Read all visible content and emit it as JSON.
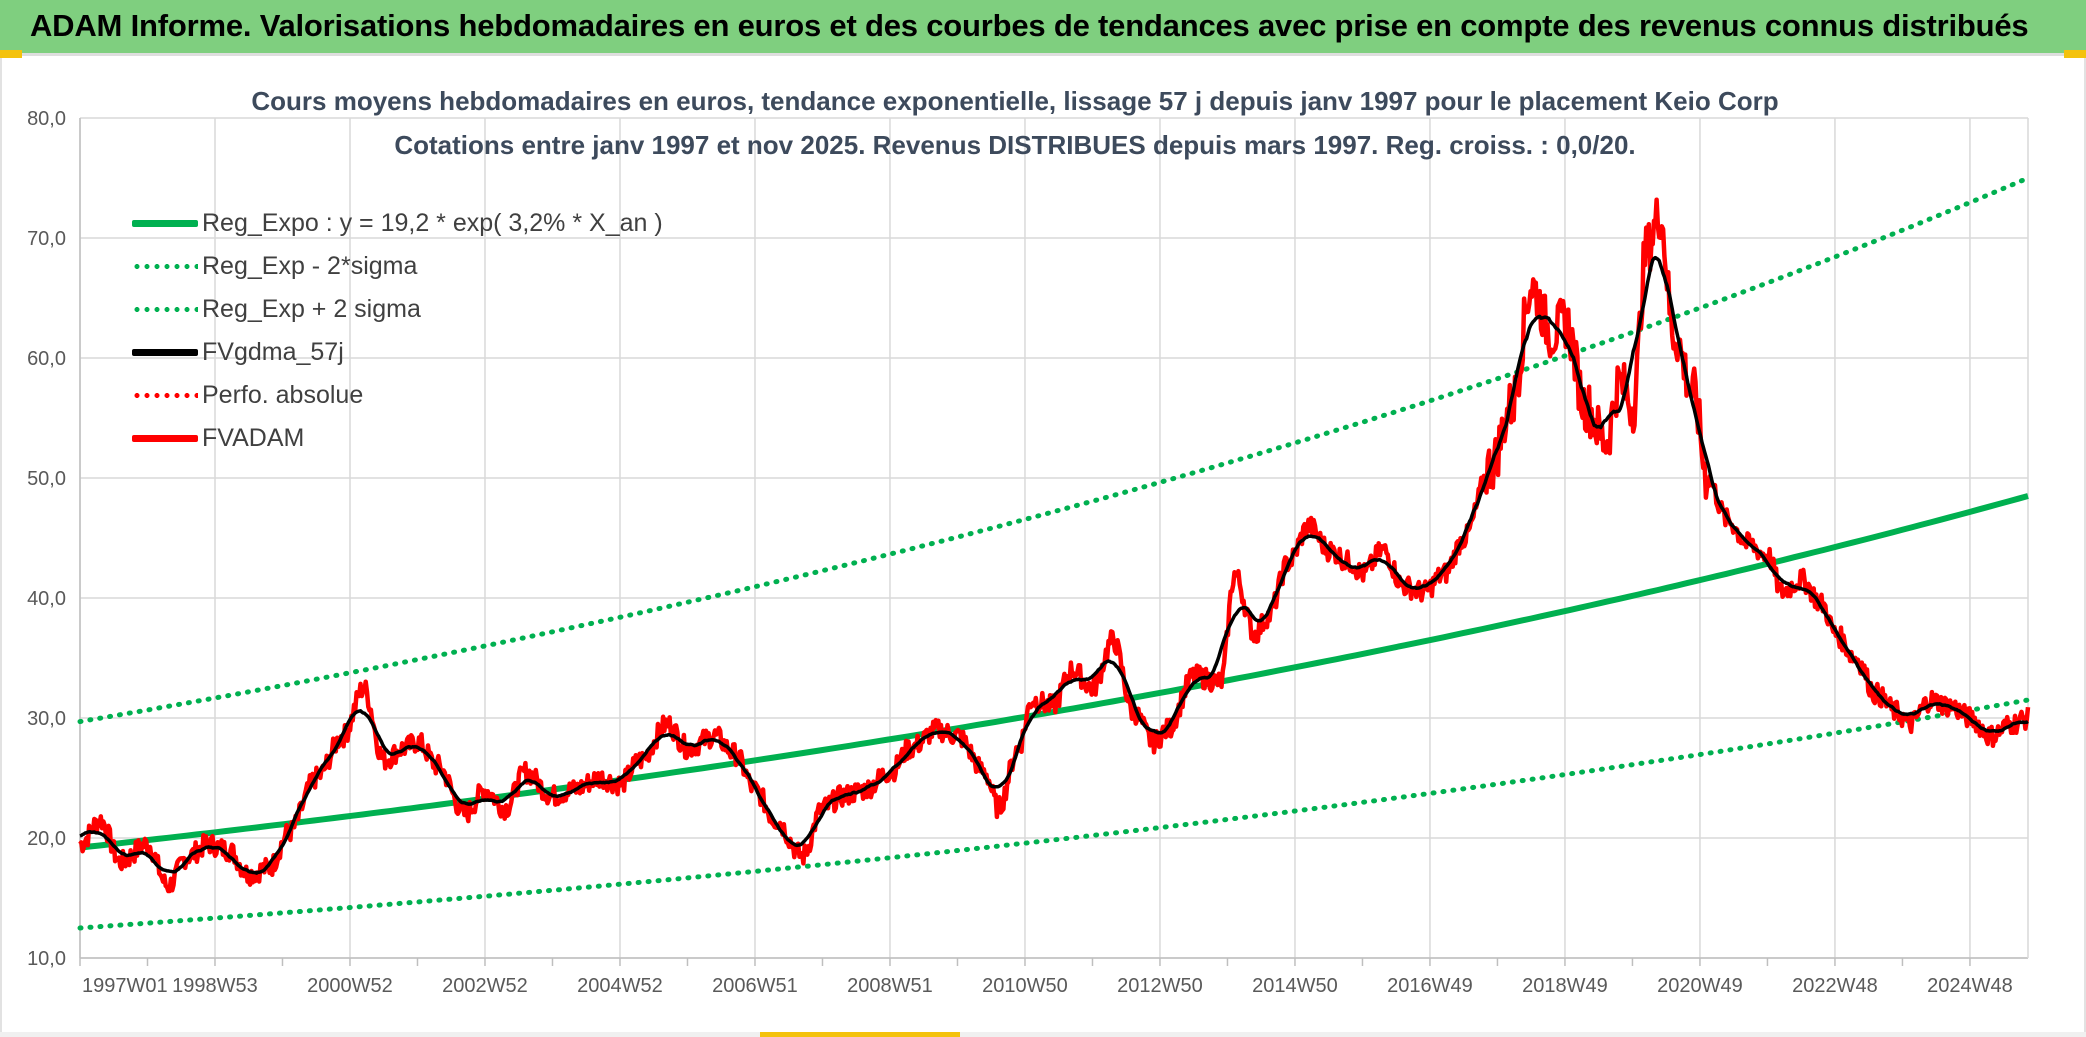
{
  "header": {
    "title": "ADAM Informe. Valorisations hebdomadaires en euros et des courbes de tendances avec prise en compte des revenus connus distribués"
  },
  "chart_data": {
    "type": "line",
    "title": "Cours moyens hebdomadaires en euros, tendance exponentielle, lissage 57 j depuis janv 1997 pour le placement Keio Corp",
    "subtitle": "Cotations entre janv 1997 et nov 2025. Revenus DISTRIBUES depuis mars 1997. Reg. croiss. : 0,0/20.",
    "xlabel": "",
    "ylabel": "",
    "ylim": [
      10,
      80
    ],
    "y_ticks": [
      "10,0",
      "20,0",
      "30,0",
      "40,0",
      "50,0",
      "60,0",
      "70,0",
      "80,0"
    ],
    "x_ticks": [
      "1997W01",
      "1998W53",
      "2000W52",
      "2002W52",
      "2004W52",
      "2006W51",
      "2008W51",
      "2010W50",
      "2012W50",
      "2014W50",
      "2016W49",
      "2018W49",
      "2020W49",
      "2022W48",
      "2024W48"
    ],
    "x_range_years": [
      1997.0,
      2025.85
    ],
    "grid": true,
    "legend_position": "top-left",
    "legend": [
      {
        "name": "Reg_Expo : y = 19,2 * exp( 3,2% *  X_an )",
        "color": "#00b050",
        "style": "solid"
      },
      {
        "name": "Reg_Exp - 2*sigma",
        "color": "#00b050",
        "style": "dotted"
      },
      {
        "name": "Reg_Exp + 2 sigma",
        "color": "#00b050",
        "style": "dotted"
      },
      {
        "name": "FVgdma_57j",
        "color": "#000000",
        "style": "solid"
      },
      {
        "name": "Perfo. absolue",
        "color": "#ff0000",
        "style": "dotted"
      },
      {
        "name": "FVADAM",
        "color": "#ff0000",
        "style": "solid"
      }
    ],
    "series": [
      {
        "name": "Reg_Expo",
        "type": "exponential",
        "a": 19.2,
        "rate": 0.032,
        "start_value": 19.2,
        "end_value": 48.5
      },
      {
        "name": "Reg_Exp - 2*sigma",
        "type": "exponential",
        "start_value": 12.5,
        "end_value": 31.5
      },
      {
        "name": "Reg_Exp + 2 sigma",
        "type": "exponential",
        "start_value": 29.7,
        "end_value": 75.0
      },
      {
        "name": "FVADAM",
        "x": [
          1997.0,
          1997.3,
          1997.6,
          1998.0,
          1998.3,
          1998.6,
          1998.9,
          1999.2,
          1999.5,
          1999.8,
          2000.1,
          2000.5,
          2000.9,
          2001.2,
          2001.5,
          2001.8,
          2002.0,
          2002.3,
          2002.7,
          2003.0,
          2003.3,
          2003.6,
          2004.0,
          2004.3,
          2004.7,
          2005.0,
          2005.3,
          2005.7,
          2006.0,
          2006.4,
          2006.7,
          2007.0,
          2007.3,
          2007.7,
          2008.0,
          2008.3,
          2008.6,
          2009.0,
          2009.3,
          2009.7,
          2010.0,
          2010.4,
          2010.6,
          2010.9,
          2011.1,
          2011.4,
          2011.7,
          2012.0,
          2012.3,
          2012.6,
          2012.9,
          2013.1,
          2013.5,
          2013.9,
          2014.1,
          2014.4,
          2014.6,
          2014.9,
          2015.2,
          2015.5,
          2015.8,
          2016.0,
          2016.3,
          2016.6,
          2016.9,
          2017.2,
          2017.5,
          2017.9,
          2018.2,
          2018.5,
          2018.8,
          2019.0,
          2019.3,
          2019.6,
          2019.8,
          2020.0,
          2020.2,
          2020.4,
          2020.6,
          2020.9,
          2021.1,
          2021.4,
          2021.7,
          2022.0,
          2022.2,
          2022.5,
          2022.8,
          2023.0,
          2023.3,
          2023.6,
          2023.9,
          2024.1,
          2024.4,
          2024.7,
          2025.0,
          2025.3,
          2025.6,
          2025.85
        ],
        "values": [
          19.5,
          21.5,
          18.0,
          19.5,
          16.0,
          18.5,
          19.5,
          19.0,
          17.0,
          17.5,
          20.5,
          25.0,
          28.5,
          32.5,
          26.5,
          27.5,
          28.0,
          26.0,
          22.0,
          24.0,
          22.5,
          25.5,
          23.5,
          24.0,
          25.0,
          24.5,
          26.5,
          29.5,
          27.5,
          28.5,
          27.0,
          24.0,
          21.5,
          18.5,
          22.5,
          23.5,
          24.0,
          25.5,
          27.5,
          29.0,
          28.5,
          25.5,
          22.5,
          27.5,
          31.5,
          31.0,
          34.0,
          32.5,
          36.5,
          30.5,
          28.0,
          29.0,
          33.5,
          33.0,
          42.0,
          37.0,
          38.5,
          43.0,
          46.0,
          44.0,
          43.0,
          42.0,
          44.0,
          41.0,
          40.5,
          42.0,
          45.0,
          51.0,
          56.0,
          66.0,
          62.0,
          63.0,
          56.0,
          53.0,
          58.0,
          56.0,
          69.0,
          72.0,
          62.0,
          57.0,
          50.0,
          46.5,
          44.5,
          43.5,
          40.5,
          41.5,
          39.5,
          37.0,
          35.0,
          32.0,
          30.5,
          29.5,
          31.5,
          31.0,
          30.0,
          28.5,
          29.5,
          30.0
        ]
      },
      {
        "name": "FVgdma_57j",
        "smoothing": "moving average of FVADAM"
      }
    ]
  }
}
